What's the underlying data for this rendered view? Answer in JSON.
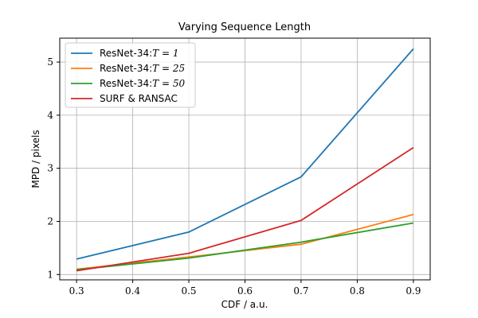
{
  "chart_data": {
    "type": "line",
    "title": "Varying Sequence Length",
    "xlabel": "CDF / a.u.",
    "ylabel": "MPD / pixels",
    "x": [
      0.3,
      0.5,
      0.7,
      0.9
    ],
    "xlim": [
      0.27,
      0.93
    ],
    "ylim": [
      0.9,
      5.45
    ],
    "xticks": [
      0.3,
      0.4,
      0.5,
      0.6,
      0.7,
      0.8,
      0.9
    ],
    "xtick_labels": [
      "0.3",
      "0.4",
      "0.5",
      "0.6",
      "0.7",
      "0.8",
      "0.9"
    ],
    "yticks": [
      1,
      2,
      3,
      4,
      5
    ],
    "ytick_labels": [
      "1",
      "2",
      "3",
      "4",
      "5"
    ],
    "grid": true,
    "legend_position": "top-left",
    "series": [
      {
        "name": "ResNet-34:",
        "math": "T = 1",
        "color": "#1f77b4",
        "values": [
          1.29,
          1.8,
          2.84,
          5.25
        ]
      },
      {
        "name": "ResNet-34:",
        "math": "T = 25",
        "color": "#ff7f0e",
        "values": [
          1.1,
          1.33,
          1.57,
          2.13
        ]
      },
      {
        "name": "ResNet-34:",
        "math": "T = 50",
        "color": "#2ca02c",
        "values": [
          1.09,
          1.31,
          1.61,
          1.97
        ]
      },
      {
        "name": "SURF & RANSAC",
        "math": "",
        "color": "#d62728",
        "values": [
          1.07,
          1.4,
          2.02,
          3.39
        ]
      }
    ]
  }
}
